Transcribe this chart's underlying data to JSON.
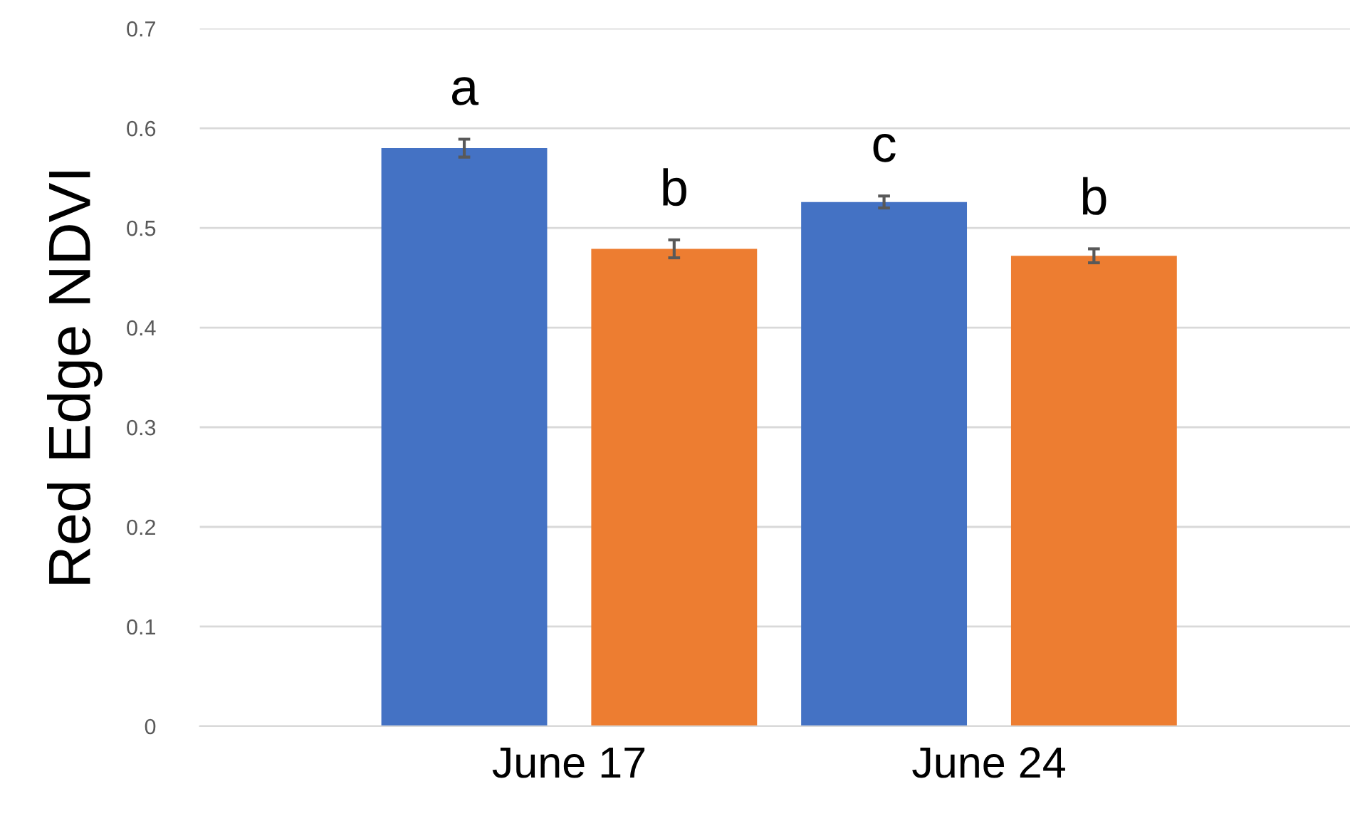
{
  "chart_data": {
    "type": "bar",
    "ylabel": "Red Edge NDVI",
    "categories": [
      "June 17",
      "June 24"
    ],
    "series": [
      {
        "color": "#4472c4",
        "values": [
          0.58,
          0.526
        ],
        "errors": [
          0.009,
          0.006
        ],
        "value_labels": [
          "a",
          "c"
        ]
      },
      {
        "color": "#ed7d31",
        "values": [
          0.479,
          0.472
        ],
        "errors": [
          0.009,
          0.007
        ],
        "value_labels": [
          "b",
          "b"
        ]
      }
    ],
    "ylim": [
      0,
      0.7
    ],
    "yticks": [
      0,
      0.1,
      0.2,
      0.3,
      0.4,
      0.5,
      0.6,
      0.7
    ],
    "grid": "y",
    "legend": false
  }
}
